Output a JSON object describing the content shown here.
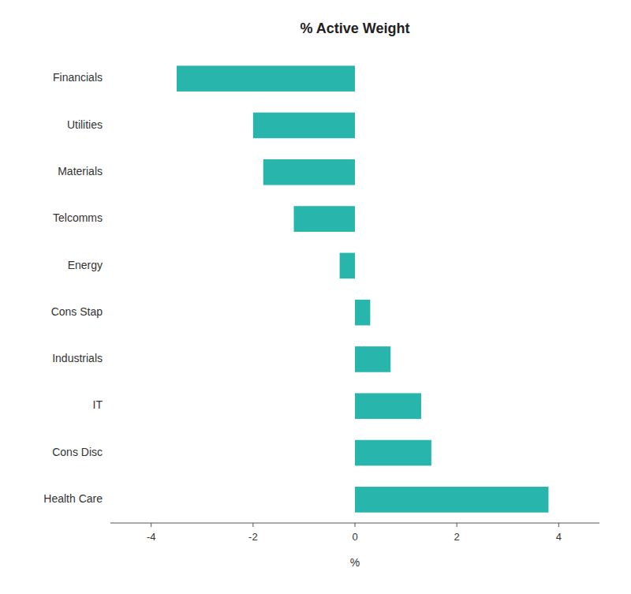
{
  "chart_data": {
    "type": "bar",
    "orientation": "horizontal",
    "title": "% Active Weight",
    "xlabel": "%",
    "categories": [
      "Financials",
      "Utilities",
      "Materials",
      "Telcomms",
      "Energy",
      "Cons Stap",
      "Industrials",
      "IT",
      "Cons Disc",
      "Health Care"
    ],
    "values": [
      -3.5,
      -2.0,
      -1.8,
      -1.2,
      -0.3,
      0.3,
      0.7,
      1.3,
      1.5,
      3.8
    ],
    "color": "#27b5ac",
    "xlim": [
      -4.8,
      4.8
    ],
    "xticks": [
      -4,
      -2,
      0,
      2,
      4
    ],
    "grid": false
  }
}
